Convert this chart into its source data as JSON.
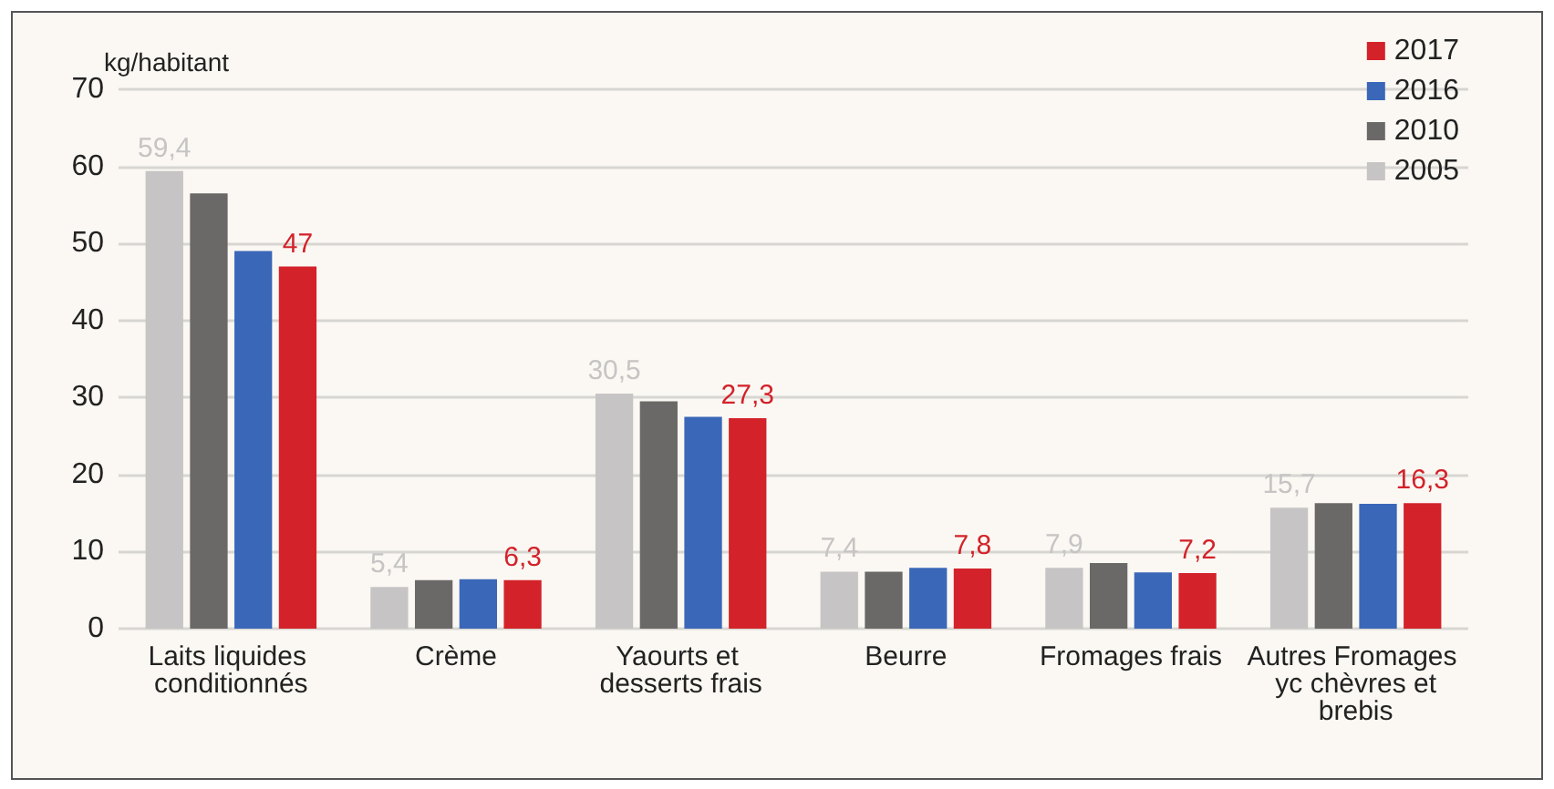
{
  "chart_data": {
    "type": "bar",
    "ylabel": "kg/habitant",
    "categories": [
      "Laits liquides conditionnés",
      "Crème",
      "Yaourts et desserts frais",
      "Beurre",
      "Fromages frais",
      "Autres Fromages  yc chèvres et brebis"
    ],
    "series": [
      {
        "name": "2005",
        "color": "#c6c4c4",
        "values": [
          59.4,
          5.4,
          30.5,
          7.4,
          7.9,
          15.7
        ],
        "value_labels": [
          "59,4",
          "5,4",
          "30,5",
          "7,4",
          "7,9",
          "15,7"
        ]
      },
      {
        "name": "2010",
        "color": "#6b6868",
        "values": [
          56.5,
          6.3,
          29.5,
          7.4,
          8.5,
          16.3
        ]
      },
      {
        "name": "2016",
        "color": "#3a67b8",
        "values": [
          49,
          6.4,
          27.5,
          7.9,
          7.3,
          16.2
        ]
      },
      {
        "name": "2017",
        "color": "#d3222a",
        "values": [
          47,
          6.3,
          27.3,
          7.8,
          7.2,
          16.3
        ],
        "value_labels": [
          "47",
          "6,3",
          "27,3",
          "7,8",
          "7,2",
          "16,3"
        ]
      }
    ],
    "ylim": [
      0,
      70
    ],
    "yticks": [
      0,
      10,
      20,
      30,
      40,
      50,
      60,
      70
    ],
    "grid": "y",
    "legend": "top right"
  }
}
